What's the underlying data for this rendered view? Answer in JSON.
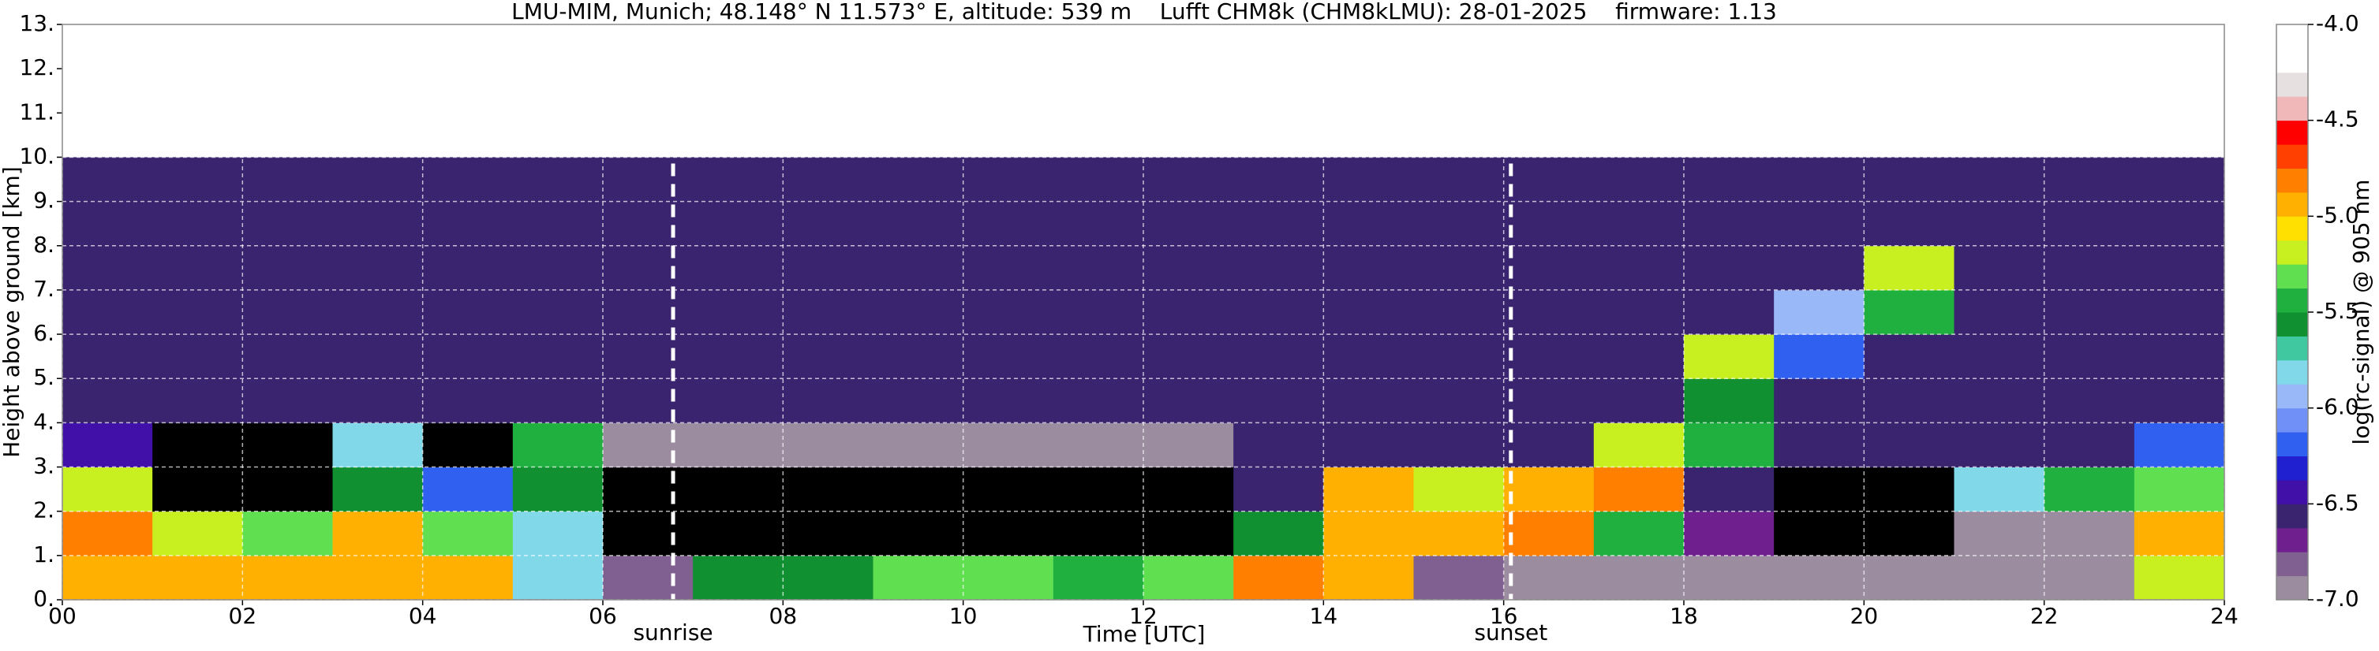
{
  "chart_data": {
    "type": "heatmap",
    "title": "LMU-MIM, Munich; 48.148° N 11.573° E, altitude: 539 m    Lufft CHM8k (CHM8kLMU): 28-01-2025    firmware: 1.13",
    "xlabel": "Time [UTC]",
    "ylabel": "Height above ground [km]",
    "xlim": [
      0,
      24
    ],
    "ylim": [
      0,
      13
    ],
    "xticks": [
      {
        "value": 0,
        "label": "00"
      },
      {
        "value": 2,
        "label": "02"
      },
      {
        "value": 4,
        "label": "04"
      },
      {
        "value": 6,
        "label": "06"
      },
      {
        "value": 8,
        "label": "08"
      },
      {
        "value": 10,
        "label": "10"
      },
      {
        "value": 12,
        "label": "12"
      },
      {
        "value": 14,
        "label": "14"
      },
      {
        "value": 16,
        "label": "16"
      },
      {
        "value": 18,
        "label": "18"
      },
      {
        "value": 20,
        "label": "20"
      },
      {
        "value": 22,
        "label": "22"
      },
      {
        "value": 24,
        "label": "24"
      }
    ],
    "yticks": [
      {
        "value": 0,
        "label": "0."
      },
      {
        "value": 1,
        "label": "1."
      },
      {
        "value": 2,
        "label": "2."
      },
      {
        "value": 3,
        "label": "3."
      },
      {
        "value": 4,
        "label": "4."
      },
      {
        "value": 5,
        "label": "5."
      },
      {
        "value": 6,
        "label": "6."
      },
      {
        "value": 7,
        "label": "7."
      },
      {
        "value": 8,
        "label": "8."
      },
      {
        "value": 9,
        "label": "9."
      },
      {
        "value": 10,
        "label": "10."
      },
      {
        "value": 11,
        "label": "11."
      },
      {
        "value": 12,
        "label": "12."
      },
      {
        "value": 13,
        "label": "13."
      }
    ],
    "grid": true,
    "x_edges": [
      0,
      1,
      2,
      3,
      4,
      5,
      6,
      7,
      8,
      9,
      10,
      11,
      12,
      13,
      14,
      15,
      16,
      17,
      18,
      19,
      20,
      21,
      22,
      23,
      24
    ],
    "y_edges": [
      0,
      1,
      2,
      3,
      4,
      5,
      6,
      7,
      8,
      9,
      10
    ],
    "z": [
      [
        -5.0,
        -5.0,
        -5.0,
        -5.0,
        -5.0,
        -5.8,
        -6.8,
        -5.6,
        -5.6,
        -5.3,
        -5.3,
        -5.4,
        -5.3,
        -4.8,
        -5.0,
        -6.8,
        -6.9,
        -6.9,
        -6.9,
        -6.9,
        -6.9,
        -6.9,
        -6.9,
        -5.2
      ],
      [
        -4.8,
        -5.2,
        -5.3,
        -5.0,
        -5.3,
        -5.8,
        -7.2,
        -7.2,
        -7.2,
        -7.2,
        -7.2,
        -7.2,
        -7.2,
        -5.6,
        -5.0,
        -5.0,
        -4.8,
        -5.5,
        -6.7,
        -7.2,
        -7.2,
        -6.9,
        -6.9,
        -5.0
      ],
      [
        -5.2,
        -7.2,
        -7.2,
        -5.6,
        -6.2,
        -5.6,
        -7.2,
        -7.2,
        -7.2,
        -7.2,
        -7.2,
        -7.2,
        -7.2,
        -6.6,
        -5.0,
        -5.2,
        -5.0,
        -4.8,
        -6.6,
        -7.2,
        -7.2,
        -5.8,
        -5.5,
        -5.3
      ],
      [
        -6.5,
        -7.2,
        -7.2,
        -5.8,
        -7.2,
        -5.5,
        -6.9,
        -6.9,
        -6.9,
        -6.9,
        -6.9,
        -6.9,
        -6.9,
        -6.6,
        -6.6,
        -6.6,
        -6.6,
        -5.2,
        -5.4,
        -6.6,
        -6.6,
        -6.6,
        -6.6,
        -6.2
      ],
      [
        -6.6,
        -6.6,
        -6.6,
        -6.6,
        -6.6,
        -6.6,
        -6.6,
        -6.6,
        -6.6,
        -6.6,
        -6.6,
        -6.6,
        -6.6,
        -6.6,
        -6.6,
        -6.6,
        -6.6,
        -6.6,
        -5.6,
        -6.6,
        -6.6,
        -6.6,
        -6.6,
        -6.6
      ],
      [
        -6.6,
        -6.6,
        -6.6,
        -6.6,
        -6.6,
        -6.6,
        -6.6,
        -6.6,
        -6.6,
        -6.6,
        -6.6,
        -6.6,
        -6.6,
        -6.6,
        -6.6,
        -6.6,
        -6.6,
        -6.6,
        -5.2,
        -6.2,
        -6.6,
        -6.6,
        -6.6,
        -6.6
      ],
      [
        -6.6,
        -6.6,
        -6.6,
        -6.6,
        -6.6,
        -6.6,
        -6.6,
        -6.6,
        -6.6,
        -6.6,
        -6.6,
        -6.6,
        -6.6,
        -6.6,
        -6.6,
        -6.6,
        -6.6,
        -6.6,
        -6.6,
        -6.0,
        -5.4,
        -6.6,
        -6.6,
        -6.6
      ],
      [
        -6.6,
        -6.6,
        -6.6,
        -6.6,
        -6.6,
        -6.6,
        -6.6,
        -6.6,
        -6.6,
        -6.6,
        -6.6,
        -6.6,
        -6.6,
        -6.6,
        -6.6,
        -6.6,
        -6.6,
        -6.6,
        -6.6,
        -6.6,
        -5.2,
        -6.6,
        -6.6,
        -6.6
      ],
      [
        -6.6,
        -6.6,
        -6.6,
        -6.6,
        -6.6,
        -6.6,
        -6.6,
        -6.6,
        -6.6,
        -6.6,
        -6.6,
        -6.6,
        -6.6,
        -6.6,
        -6.6,
        -6.6,
        -6.6,
        -6.6,
        -6.6,
        -6.6,
        -6.6,
        -6.6,
        -6.6,
        -6.6
      ],
      [
        -6.6,
        -6.6,
        -6.6,
        -6.6,
        -6.6,
        -6.6,
        -6.6,
        -6.6,
        -6.6,
        -6.6,
        -6.6,
        -6.6,
        -6.6,
        -6.6,
        -6.6,
        -6.6,
        -6.6,
        -6.6,
        -6.6,
        -6.6,
        -6.6,
        -6.6,
        -6.6,
        -6.6
      ]
    ],
    "annotations": [
      {
        "text": "sunrise",
        "x": 6.78
      },
      {
        "text": "sunset",
        "x": 16.08
      }
    ],
    "colorbar": {
      "label": "log(rc-signal) @ 905 nm",
      "lim": [
        -7,
        -4
      ],
      "ticks": [
        {
          "value": -4,
          "label": "-4.0"
        },
        {
          "value": -4.5,
          "label": "-4.5"
        },
        {
          "value": -5,
          "label": "-5.0"
        },
        {
          "value": -5.5,
          "label": "-5.5"
        },
        {
          "value": -6,
          "label": "-6.0"
        },
        {
          "value": -6.5,
          "label": "-6.5"
        },
        {
          "value": -7,
          "label": "-7.0"
        }
      ],
      "colors": [
        "#9c8ca0",
        "#806090",
        "#70208e",
        "#3a2470",
        "#4010a8",
        "#2020d0",
        "#3060f0",
        "#7090f8",
        "#98b8f8",
        "#80d8e8",
        "#40c8a0",
        "#109030",
        "#20b040",
        "#60e050",
        "#c8f020",
        "#ffe000",
        "#ffb000",
        "#ff8000",
        "#ff4000",
        "#ff0000",
        "#f0b8b8",
        "#e6e0e0",
        "#ffffff",
        "#ffffff"
      ],
      "under_color": "#000000"
    }
  }
}
